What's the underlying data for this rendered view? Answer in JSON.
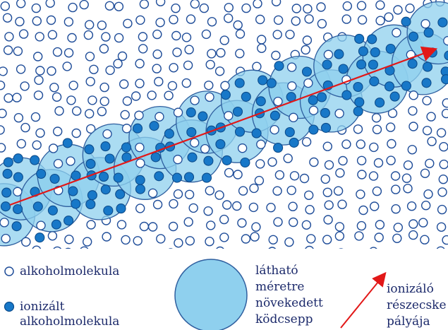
{
  "colors": {
    "outline": "#1f4d99",
    "droplet_fill": "#8fd0ee",
    "droplet_stroke": "#2f5f9f",
    "ion_fill": "#1878c8",
    "ion_stroke": "#0c4c8c",
    "arrow": "#e21818",
    "text": "#1c2a6b"
  },
  "legend": {
    "molecule_label": "alkoholmolekula",
    "ionized_line1": "ionizált",
    "ionized_line2": "alkoholmolekula",
    "droplet_line1": "látható",
    "droplet_line2": "méretre",
    "droplet_line3": "növekedett",
    "droplet_line4": "ködcsepp",
    "track_line1": "ionizáló",
    "track_line2": "részecske",
    "track_line3": "pályája"
  }
}
